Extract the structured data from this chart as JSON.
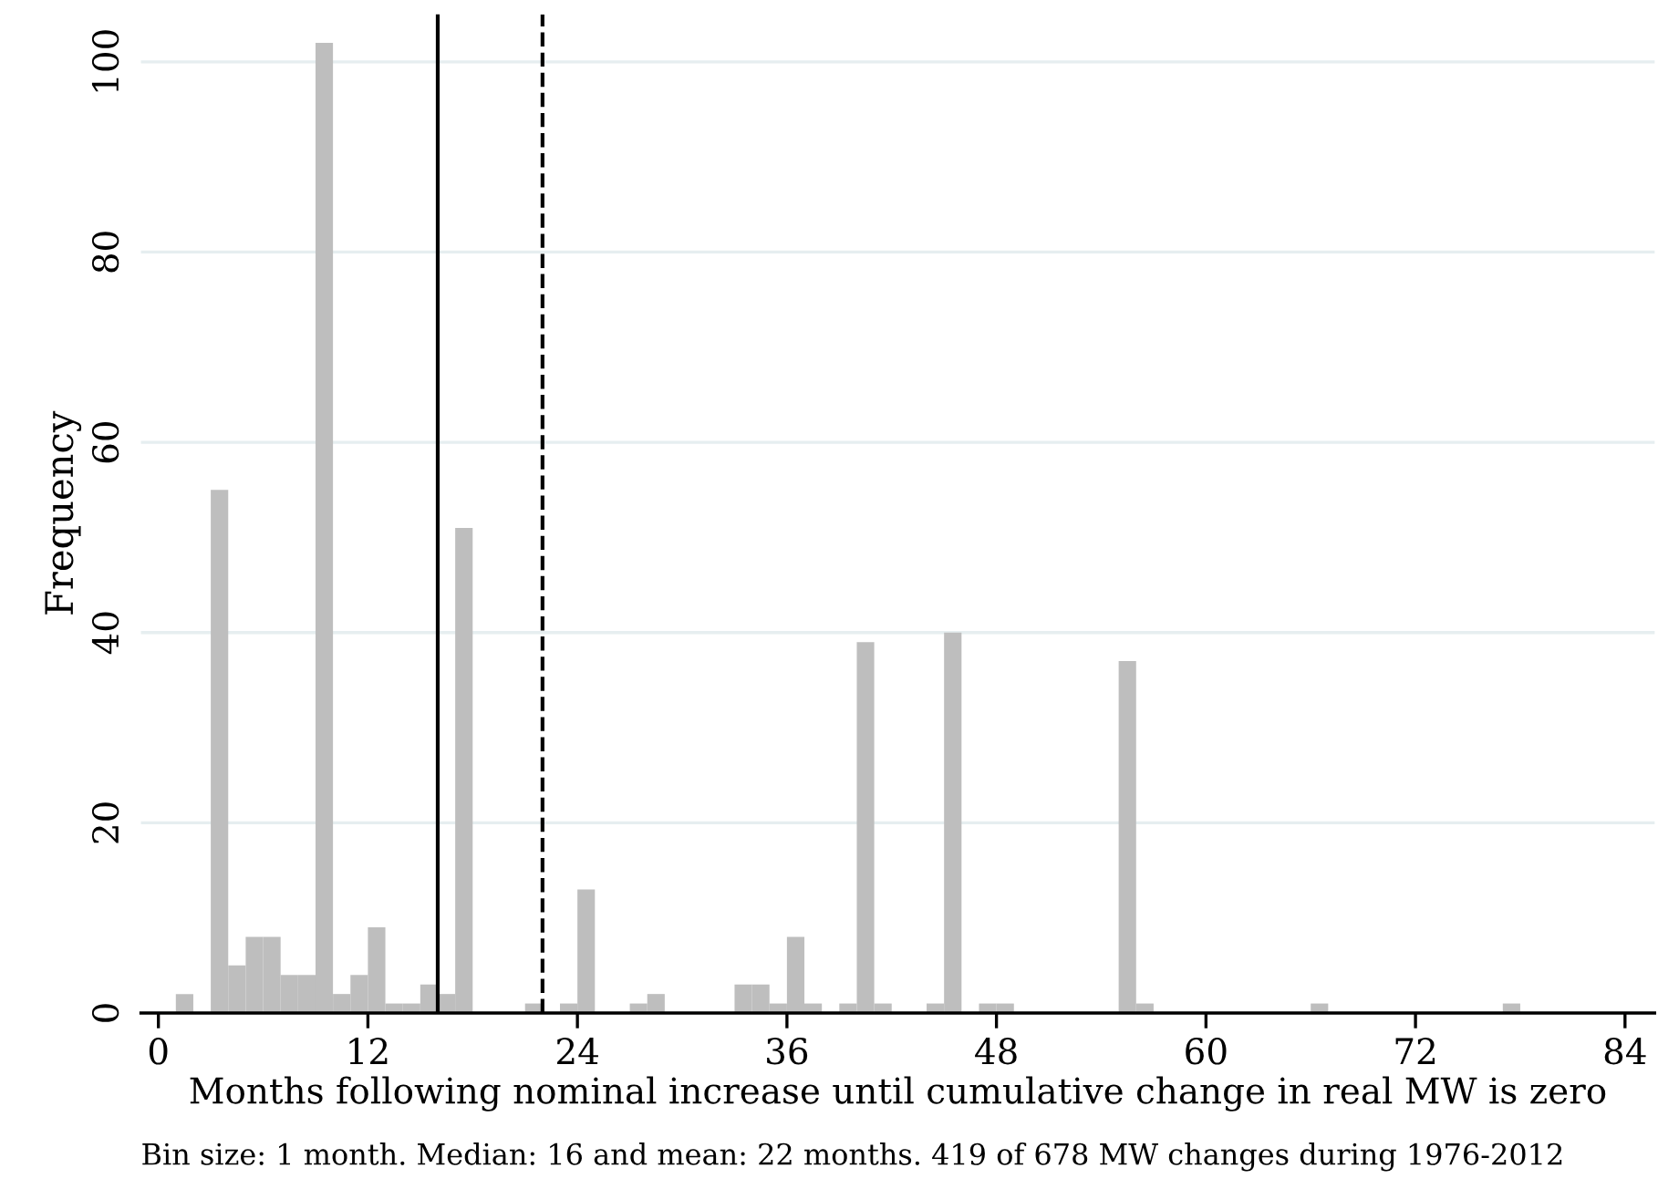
{
  "chart_data": {
    "type": "histogram",
    "xlabel": "Months following nominal increase until cumulative change in real MW is zero",
    "ylabel": "Frequency",
    "bins": [
      1,
      2,
      3,
      4,
      5,
      6,
      7,
      8,
      9,
      10,
      11,
      12,
      13,
      14,
      15,
      16,
      17,
      18,
      19,
      20,
      21,
      22,
      23,
      24,
      25,
      26,
      27,
      28,
      29,
      30,
      31,
      32,
      33,
      34,
      35,
      36,
      37,
      38,
      39,
      40,
      41,
      42,
      43,
      44,
      45,
      46,
      47,
      48,
      49,
      50,
      51,
      52,
      53,
      54,
      55,
      56,
      57,
      58,
      59,
      60,
      61,
      62,
      63,
      64,
      65,
      66,
      67,
      68,
      69,
      70,
      71,
      72,
      73,
      74,
      75,
      76,
      77,
      78
    ],
    "values": [
      2,
      0,
      55,
      5,
      8,
      8,
      4,
      4,
      102,
      2,
      4,
      9,
      1,
      1,
      3,
      2,
      51,
      0,
      0,
      0,
      1,
      0,
      1,
      13,
      0,
      0,
      1,
      2,
      0,
      0,
      0,
      0,
      3,
      3,
      1,
      8,
      1,
      0,
      1,
      39,
      1,
      0,
      0,
      1,
      40,
      0,
      1,
      1,
      0,
      0,
      0,
      0,
      0,
      0,
      37,
      1,
      0,
      0,
      0,
      0,
      0,
      0,
      0,
      0,
      0,
      1,
      0,
      0,
      0,
      0,
      0,
      0,
      0,
      0,
      0,
      0,
      1
    ],
    "color": "#bebebe",
    "xlim": [
      -1,
      85.7
    ],
    "xticks": [
      0,
      12,
      24,
      36,
      48,
      60,
      72,
      84
    ],
    "ylim": [
      0,
      105
    ],
    "yticks": [
      0,
      20,
      40,
      60,
      80,
      100
    ],
    "grid": "y",
    "ref_lines": [
      {
        "axis": "x",
        "value": 16,
        "color": "#000000",
        "line_style": "solid"
      },
      {
        "axis": "x",
        "value": 22,
        "color": "#000000",
        "line_style": "dashed"
      }
    ],
    "annotations": [
      "Bin size: 1 month. Median: 16 and mean: 22 months. 419 of 678 MW changes during 1976-2012"
    ]
  }
}
